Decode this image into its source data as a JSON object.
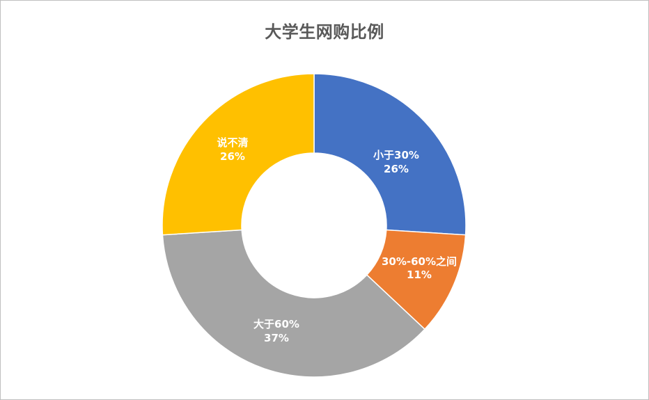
{
  "chart_data": {
    "type": "pie",
    "variant": "doughnut",
    "title": "大学生网购比例",
    "categories": [
      "小于30%",
      "30%-60%之间",
      "大于60%",
      "说不清"
    ],
    "values": [
      26,
      11,
      37,
      26
    ],
    "unit": "%",
    "colors": [
      "#4472C4",
      "#ED7D31",
      "#A5A5A5",
      "#FFC000"
    ],
    "data_labels": [
      {
        "category": "小于30%",
        "percent": "26%"
      },
      {
        "category": "30%-60%之间",
        "percent": "11%"
      },
      {
        "category": "大于60%",
        "percent": "37%"
      },
      {
        "category": "说不清",
        "percent": "26%"
      }
    ],
    "start_angle_deg": 0,
    "direction": "clockwise",
    "legend": "none",
    "hole_ratio": 0.48
  },
  "labels": {
    "s0_cat": "小于30%",
    "s0_pct": "26%",
    "s1_cat": "30%-60%之间",
    "s1_pct": "11%",
    "s2_cat": "大于60%",
    "s2_pct": "37%",
    "s3_cat": "说不清",
    "s3_pct": "26%"
  }
}
